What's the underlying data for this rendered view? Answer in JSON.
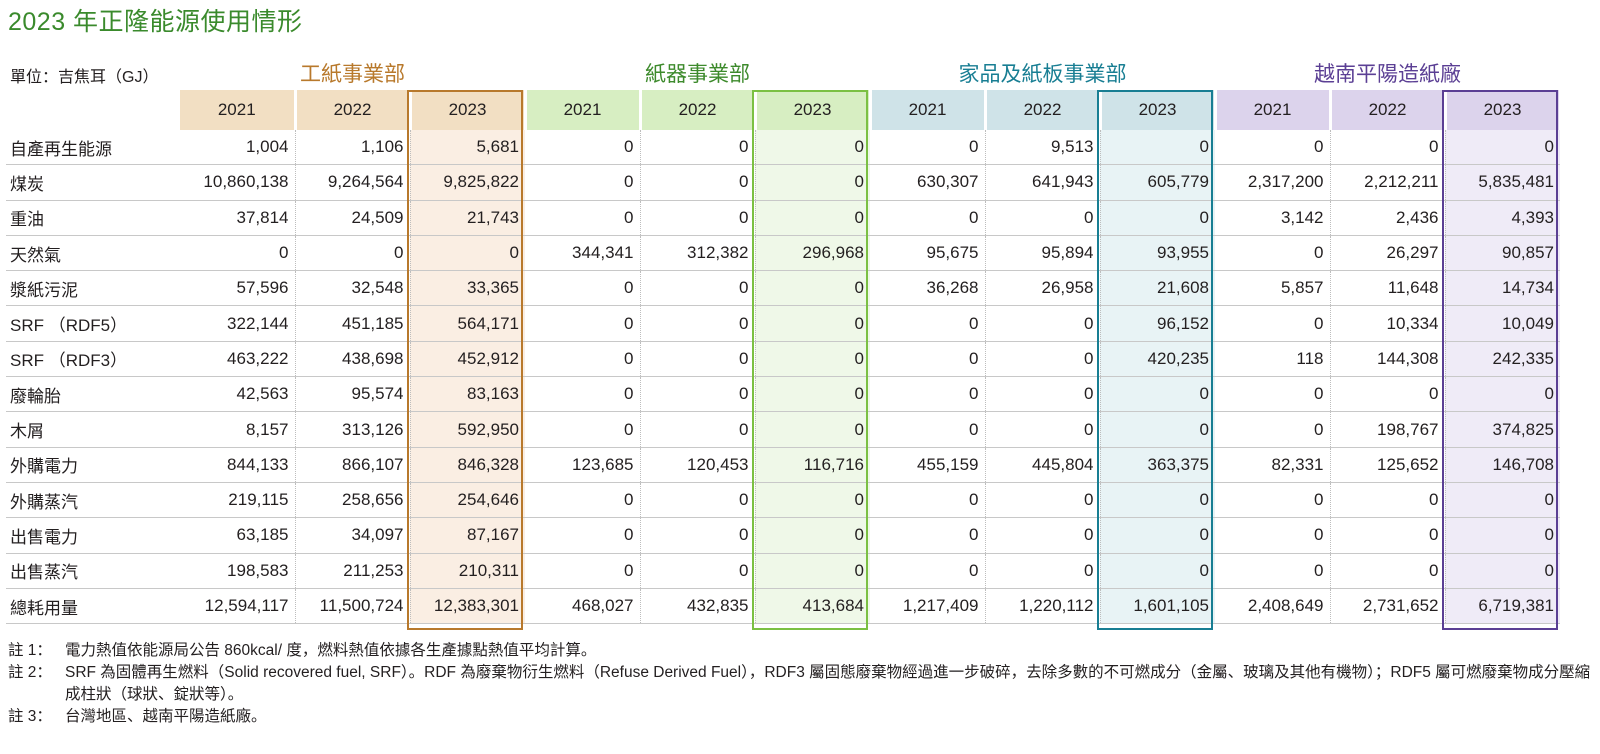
{
  "title": "2023 年正隆能源使用情形",
  "unit_label": "單位：吉焦耳（GJ）",
  "groups": [
    {
      "name": "工紙事業部",
      "color": "#b8792c",
      "key": "p"
    },
    {
      "name": "紙器事業部",
      "color": "#3d8a2c",
      "key": "c"
    },
    {
      "name": "家品及紙板事業部",
      "color": "#187e93",
      "key": "h"
    },
    {
      "name": "越南平陽造紙廠",
      "color": "#5b3f94",
      "key": "v"
    }
  ],
  "years": [
    "2021",
    "2022",
    "2023"
  ],
  "rows": [
    {
      "label": "自產再生能源",
      "values": [
        "1,004",
        "1,106",
        "5,681",
        "0",
        "0",
        "0",
        "0",
        "9,513",
        "0",
        "0",
        "0",
        "0"
      ]
    },
    {
      "label": "煤炭",
      "values": [
        "10,860,138",
        "9,264,564",
        "9,825,822",
        "0",
        "0",
        "0",
        "630,307",
        "641,943",
        "605,779",
        "2,317,200",
        "2,212,211",
        "5,835,481"
      ]
    },
    {
      "label": "重油",
      "values": [
        "37,814",
        "24,509",
        "21,743",
        "0",
        "0",
        "0",
        "0",
        "0",
        "0",
        "3,142",
        "2,436",
        "4,393"
      ]
    },
    {
      "label": "天然氣",
      "values": [
        "0",
        "0",
        "0",
        "344,341",
        "312,382",
        "296,968",
        "95,675",
        "95,894",
        "93,955",
        "0",
        "26,297",
        "90,857"
      ]
    },
    {
      "label": "漿紙污泥",
      "values": [
        "57,596",
        "32,548",
        "33,365",
        "0",
        "0",
        "0",
        "36,268",
        "26,958",
        "21,608",
        "5,857",
        "11,648",
        "14,734"
      ]
    },
    {
      "label": "SRF （RDF5）",
      "values": [
        "322,144",
        "451,185",
        "564,171",
        "0",
        "0",
        "0",
        "0",
        "0",
        "96,152",
        "0",
        "10,334",
        "10,049"
      ]
    },
    {
      "label": "SRF （RDF3）",
      "values": [
        "463,222",
        "438,698",
        "452,912",
        "0",
        "0",
        "0",
        "0",
        "0",
        "420,235",
        "118",
        "144,308",
        "242,335"
      ]
    },
    {
      "label": "廢輪胎",
      "values": [
        "42,563",
        "95,574",
        "83,163",
        "0",
        "0",
        "0",
        "0",
        "0",
        "0",
        "0",
        "0",
        "0"
      ]
    },
    {
      "label": "木屑",
      "values": [
        "8,157",
        "313,126",
        "592,950",
        "0",
        "0",
        "0",
        "0",
        "0",
        "0",
        "0",
        "198,767",
        "374,825"
      ]
    },
    {
      "label": "外購電力",
      "values": [
        "844,133",
        "866,107",
        "846,328",
        "123,685",
        "120,453",
        "116,716",
        "455,159",
        "445,804",
        "363,375",
        "82,331",
        "125,652",
        "146,708"
      ]
    },
    {
      "label": "外購蒸汽",
      "values": [
        "219,115",
        "258,656",
        "254,646",
        "0",
        "0",
        "0",
        "0",
        "0",
        "0",
        "0",
        "0",
        "0"
      ]
    },
    {
      "label": "出售電力",
      "values": [
        "63,185",
        "34,097",
        "87,167",
        "0",
        "0",
        "0",
        "0",
        "0",
        "0",
        "0",
        "0",
        "0"
      ]
    },
    {
      "label": "出售蒸汽",
      "values": [
        "198,583",
        "211,253",
        "210,311",
        "0",
        "0",
        "0",
        "0",
        "0",
        "0",
        "0",
        "0",
        "0"
      ]
    },
    {
      "label": "總耗用量",
      "values": [
        "12,594,117",
        "11,500,724",
        "12,383,301",
        "468,027",
        "432,835",
        "413,684",
        "1,217,409",
        "1,220,112",
        "1,601,105",
        "2,408,649",
        "2,731,652",
        "6,719,381"
      ]
    }
  ],
  "notes": [
    {
      "label": "註 1：",
      "text": "電力熱值依能源局公告 860kcal/ 度，燃料熱值依據各生產據點熱值平均計算。"
    },
    {
      "label": "註 2：",
      "text": "SRF 為固體再生燃料（Solid recovered fuel, SRF）。RDF 為廢棄物衍生燃料（Refuse Derived Fuel），RDF3 屬固態廢棄物經過進一步破碎，去除多數的不可燃成分（金屬、玻璃及其他有機物）；RDF5 屬可燃廢棄物成分壓縮成柱狀（球狀、錠狀等）。"
    },
    {
      "label": "註 3：",
      "text": "台灣地區、越南平陽造紙廠。"
    }
  ]
}
